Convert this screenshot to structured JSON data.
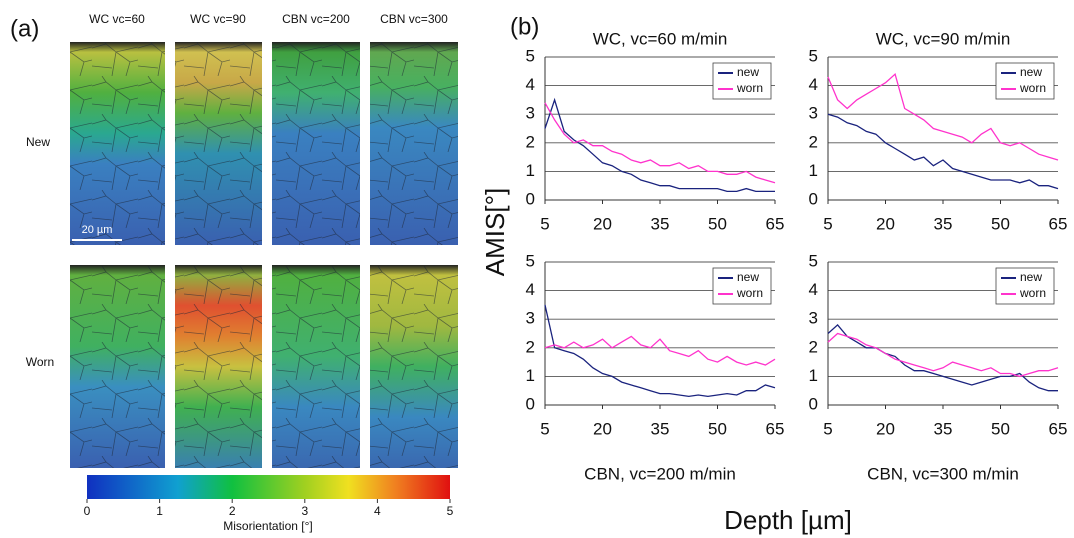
{
  "panel_a": {
    "label": "(a)",
    "columns": [
      "WC vc=60",
      "WC vc=90",
      "CBN vc=200",
      "CBN vc=300"
    ],
    "rows": [
      "New",
      "Worn"
    ],
    "scale_bar": "20 µm",
    "colorbar": {
      "lim": [
        0,
        5
      ],
      "ticks": [
        0,
        1,
        2,
        3,
        4,
        5
      ],
      "label": "Misorientation [°]"
    }
  },
  "panel_b": {
    "label": "(b)",
    "ylabel": "AMIS[°]",
    "xlabel": "Depth [µm]"
  },
  "chart_data": [
    {
      "type": "line",
      "title": "WC, vc=60 m/min",
      "x": [
        5,
        7.5,
        10,
        12.5,
        15,
        17.5,
        20,
        22.5,
        25,
        27.5,
        30,
        32.5,
        35,
        37.5,
        40,
        42.5,
        45,
        47.5,
        50,
        52.5,
        55,
        57.5,
        60,
        62.5,
        65
      ],
      "series": [
        {
          "name": "new",
          "color": "#1a237e",
          "values": [
            2.5,
            3.5,
            2.4,
            2.1,
            1.9,
            1.6,
            1.3,
            1.2,
            1.0,
            0.9,
            0.7,
            0.6,
            0.5,
            0.5,
            0.4,
            0.4,
            0.4,
            0.4,
            0.4,
            0.3,
            0.3,
            0.4,
            0.3,
            0.3,
            0.3
          ]
        },
        {
          "name": "worn",
          "color": "#ff33cc",
          "values": [
            3.4,
            2.8,
            2.3,
            2.0,
            2.1,
            1.9,
            1.9,
            1.7,
            1.6,
            1.4,
            1.3,
            1.4,
            1.2,
            1.2,
            1.3,
            1.1,
            1.2,
            1.0,
            1.0,
            0.9,
            0.9,
            1.0,
            0.8,
            0.7,
            0.6
          ]
        }
      ],
      "xlim": [
        5,
        65
      ],
      "ylim": [
        0,
        5
      ],
      "xticks": [
        5,
        20,
        35,
        50,
        65
      ],
      "yticks": [
        0,
        1,
        2,
        3,
        4,
        5
      ],
      "grid": true,
      "legend": "upper right"
    },
    {
      "type": "line",
      "title": "WC, vc=90 m/min",
      "x": [
        5,
        7.5,
        10,
        12.5,
        15,
        17.5,
        20,
        22.5,
        25,
        27.5,
        30,
        32.5,
        35,
        37.5,
        40,
        42.5,
        45,
        47.5,
        50,
        52.5,
        55,
        57.5,
        60,
        62.5,
        65
      ],
      "series": [
        {
          "name": "new",
          "color": "#1a237e",
          "values": [
            3.0,
            2.9,
            2.7,
            2.6,
            2.4,
            2.3,
            2.0,
            1.8,
            1.6,
            1.4,
            1.5,
            1.2,
            1.4,
            1.1,
            1.0,
            0.9,
            0.8,
            0.7,
            0.7,
            0.7,
            0.6,
            0.7,
            0.5,
            0.5,
            0.4
          ]
        },
        {
          "name": "worn",
          "color": "#ff33cc",
          "values": [
            4.3,
            3.5,
            3.2,
            3.5,
            3.7,
            3.9,
            4.1,
            4.4,
            3.2,
            3.0,
            2.8,
            2.5,
            2.4,
            2.3,
            2.2,
            2.0,
            2.3,
            2.5,
            2.0,
            1.9,
            2.0,
            1.8,
            1.6,
            1.5,
            1.4
          ]
        }
      ],
      "xlim": [
        5,
        65
      ],
      "ylim": [
        0,
        5
      ],
      "xticks": [
        5,
        20,
        35,
        50,
        65
      ],
      "yticks": [
        0,
        1,
        2,
        3,
        4,
        5
      ],
      "grid": true,
      "legend": "upper right"
    },
    {
      "type": "line",
      "title": "CBN, vc=200 m/min",
      "x": [
        5,
        7.5,
        10,
        12.5,
        15,
        17.5,
        20,
        22.5,
        25,
        27.5,
        30,
        32.5,
        35,
        37.5,
        40,
        42.5,
        45,
        47.5,
        50,
        52.5,
        55,
        57.5,
        60,
        62.5,
        65
      ],
      "series": [
        {
          "name": "new",
          "color": "#1a237e",
          "values": [
            3.5,
            2.0,
            1.9,
            1.8,
            1.6,
            1.3,
            1.1,
            1.0,
            0.8,
            0.7,
            0.6,
            0.5,
            0.4,
            0.4,
            0.35,
            0.3,
            0.35,
            0.3,
            0.35,
            0.4,
            0.35,
            0.5,
            0.5,
            0.7,
            0.6
          ]
        },
        {
          "name": "worn",
          "color": "#ff33cc",
          "values": [
            2.0,
            2.1,
            2.0,
            2.2,
            2.0,
            2.1,
            2.3,
            2.0,
            2.2,
            2.4,
            2.1,
            2.0,
            2.3,
            1.9,
            1.8,
            1.7,
            1.9,
            1.6,
            1.5,
            1.7,
            1.5,
            1.4,
            1.5,
            1.4,
            1.6
          ]
        }
      ],
      "xlim": [
        5,
        65
      ],
      "ylim": [
        0,
        5
      ],
      "xticks": [
        5,
        20,
        35,
        50,
        65
      ],
      "yticks": [
        0,
        1,
        2,
        3,
        4,
        5
      ],
      "grid": true,
      "legend": "upper right"
    },
    {
      "type": "line",
      "title": "CBN, vc=300 m/min",
      "x": [
        5,
        7.5,
        10,
        12.5,
        15,
        17.5,
        20,
        22.5,
        25,
        27.5,
        30,
        32.5,
        35,
        37.5,
        40,
        42.5,
        45,
        47.5,
        50,
        52.5,
        55,
        57.5,
        60,
        62.5,
        65
      ],
      "series": [
        {
          "name": "new",
          "color": "#1a237e",
          "values": [
            2.5,
            2.8,
            2.4,
            2.2,
            2.0,
            2.0,
            1.8,
            1.7,
            1.4,
            1.2,
            1.2,
            1.1,
            1.0,
            0.9,
            0.8,
            0.7,
            0.8,
            0.9,
            1.0,
            1.0,
            1.1,
            0.8,
            0.6,
            0.5,
            0.5
          ]
        },
        {
          "name": "worn",
          "color": "#ff33cc",
          "values": [
            2.2,
            2.5,
            2.4,
            2.3,
            2.1,
            2.0,
            1.8,
            1.6,
            1.5,
            1.4,
            1.3,
            1.2,
            1.3,
            1.5,
            1.4,
            1.3,
            1.2,
            1.3,
            1.1,
            1.1,
            1.0,
            1.1,
            1.2,
            1.2,
            1.3
          ]
        }
      ],
      "xlim": [
        5,
        65
      ],
      "ylim": [
        0,
        5
      ],
      "xticks": [
        5,
        20,
        35,
        50,
        65
      ],
      "yticks": [
        0,
        1,
        2,
        3,
        4,
        5
      ],
      "grid": true,
      "legend": "upper right"
    }
  ]
}
